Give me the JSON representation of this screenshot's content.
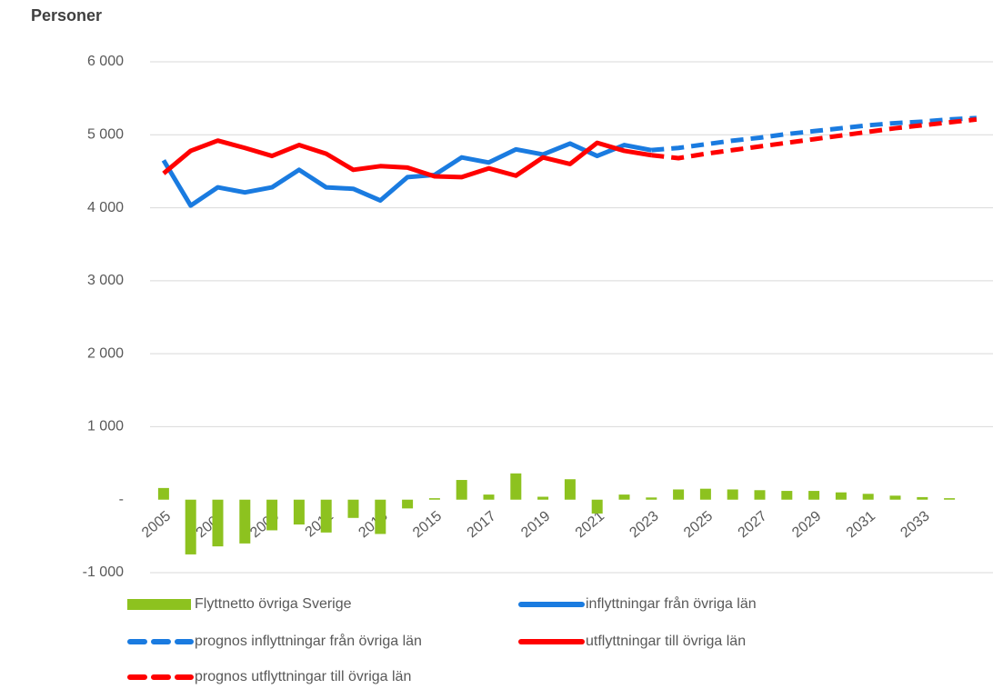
{
  "chart_data": {
    "type": "bar",
    "y_label": "Personer",
    "categories": [
      "2005",
      null,
      "2007",
      null,
      "2009",
      null,
      "2011",
      null,
      "2013",
      null,
      "2015",
      null,
      "2017",
      null,
      "2019",
      null,
      "2021",
      null,
      "2023",
      null,
      "2025",
      null,
      "2027",
      null,
      "2029",
      null,
      "2031",
      null,
      "2033",
      null,
      null
    ],
    "ylim": [
      -1000,
      6000
    ],
    "yticks": [
      {
        "value": -1000,
        "label": "-1 000"
      },
      {
        "value": 0,
        "label": "-"
      },
      {
        "value": 1000,
        "label": "1 000"
      },
      {
        "value": 2000,
        "label": "2 000"
      },
      {
        "value": 3000,
        "label": "3 000"
      },
      {
        "value": 4000,
        "label": "4 000"
      },
      {
        "value": 5000,
        "label": "5 000"
      },
      {
        "value": 6000,
        "label": "6 000"
      }
    ],
    "grid": true,
    "series": [
      {
        "name": "Flyttnetto övriga Sverige",
        "type": "bar",
        "color": "#8dc21f",
        "values": [
          160,
          -750,
          -640,
          -600,
          -420,
          -340,
          -450,
          -250,
          -470,
          -120,
          20,
          270,
          70,
          360,
          40,
          280,
          -190,
          70,
          30,
          140,
          150,
          140,
          130,
          120,
          120,
          100,
          80,
          55,
          35,
          20,
          null
        ]
      },
      {
        "name": "inflyttningar från övriga län",
        "type": "line",
        "dashed": false,
        "color": "#1a7be0",
        "values": [
          4650,
          4030,
          4280,
          4210,
          4280,
          4520,
          4280,
          4260,
          4100,
          4420,
          4450,
          4690,
          4620,
          4800,
          4730,
          4880,
          4710,
          4860,
          4790,
          null,
          null,
          null,
          null,
          null,
          null,
          null,
          null,
          null,
          null,
          null,
          null
        ]
      },
      {
        "name": "prognos inflyttningar från övriga län",
        "type": "line",
        "dashed": true,
        "color": "#1a7be0",
        "values": [
          null,
          null,
          null,
          null,
          null,
          null,
          null,
          null,
          null,
          null,
          null,
          null,
          null,
          null,
          null,
          null,
          null,
          null,
          4790,
          4820,
          4870,
          4920,
          4960,
          5010,
          5050,
          5090,
          5130,
          5160,
          5180,
          5210,
          5230
        ]
      },
      {
        "name": "utflyttningar till övriga län",
        "type": "line",
        "dashed": false,
        "color": "#ff0000",
        "values": [
          4470,
          4780,
          4920,
          4820,
          4710,
          4860,
          4740,
          4520,
          4570,
          4550,
          4430,
          4420,
          4540,
          4440,
          4690,
          4600,
          4890,
          4780,
          4720,
          null,
          null,
          null,
          null,
          null,
          null,
          null,
          null,
          null,
          null,
          null,
          null
        ]
      },
      {
        "name": "prognos utflyttningar till övriga län",
        "type": "line",
        "dashed": true,
        "color": "#ff0000",
        "values": [
          null,
          null,
          null,
          null,
          null,
          null,
          null,
          null,
          null,
          null,
          null,
          null,
          null,
          null,
          null,
          null,
          null,
          null,
          4720,
          4680,
          4740,
          4790,
          4840,
          4890,
          4940,
          4990,
          5040,
          5090,
          5130,
          5170,
          5210
        ]
      }
    ]
  }
}
